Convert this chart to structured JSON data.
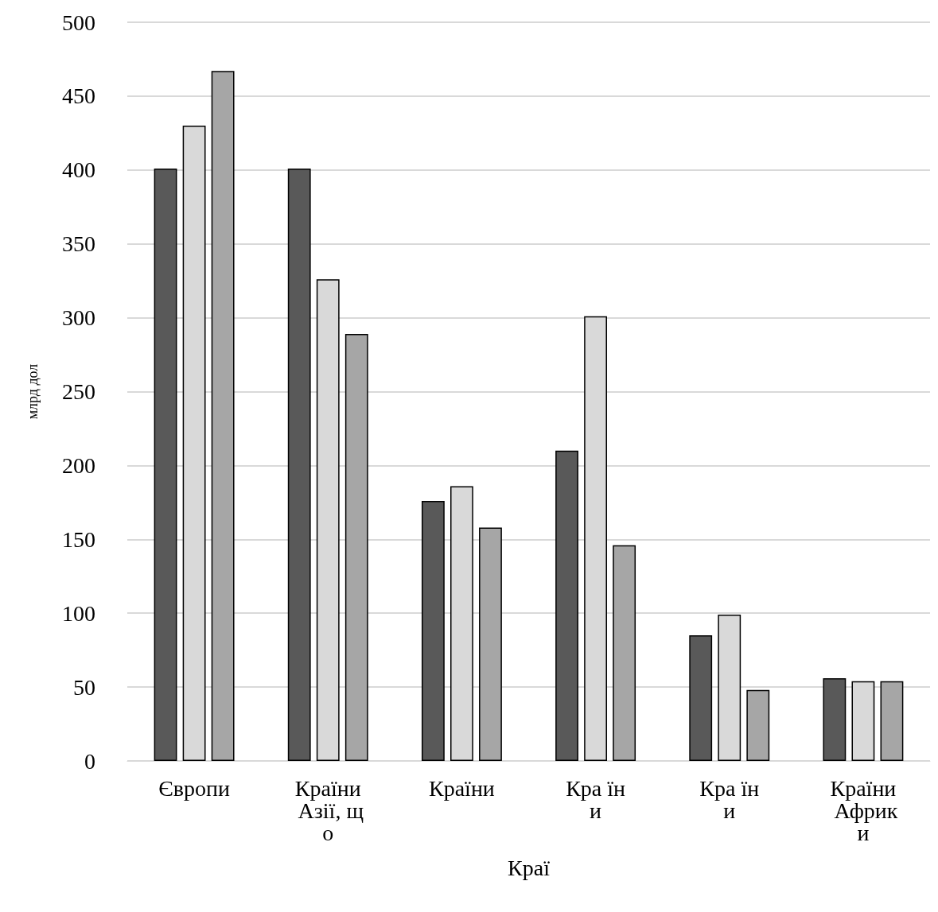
{
  "chart_data": {
    "type": "bar",
    "ylabel": "млрд дол",
    "xlabel": "Краї",
    "categories": [
      "Європи",
      "Країни Азії, що",
      "Країни",
      "Кра їни",
      "Кра їни",
      "Країни Африки"
    ],
    "series": [
      {
        "color": "#595959",
        "values": [
          401,
          401,
          176,
          210,
          85,
          56
        ]
      },
      {
        "color": "#d9d9d9",
        "values": [
          430,
          326,
          186,
          301,
          99,
          54
        ]
      },
      {
        "color": "#a6a6a6",
        "values": [
          467,
          289,
          158,
          146,
          48,
          54
        ]
      }
    ],
    "ylim": [
      0,
      500
    ],
    "yticks": [
      0,
      50,
      100,
      150,
      200,
      250,
      300,
      350,
      400,
      450,
      500
    ],
    "grid": "y"
  }
}
